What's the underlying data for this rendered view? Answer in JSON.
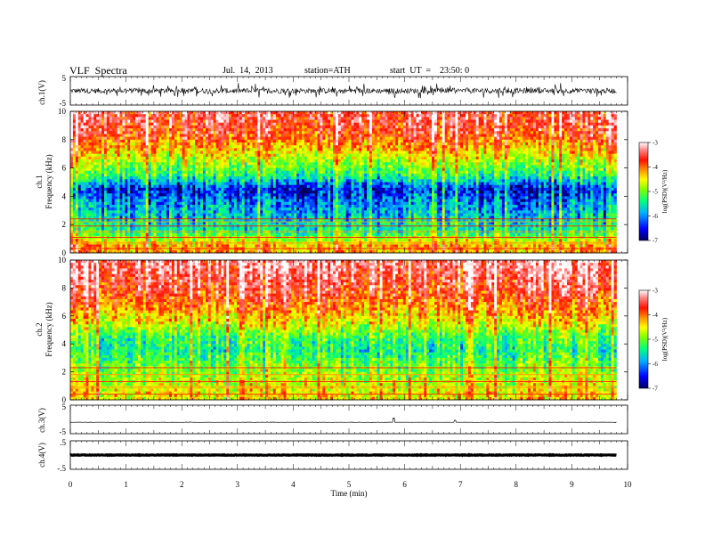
{
  "header": {
    "title": "VLF  Spectra",
    "date": "Jul.  14,  2013",
    "station": "station=ATH",
    "start": "start  UT  =    23:50: 0"
  },
  "colors": {
    "spectrum": [
      "#000080",
      "#0000ff",
      "#00a0ff",
      "#00ffd0",
      "#00ff40",
      "#a0ff00",
      "#ffff00",
      "#ffa000",
      "#ff3000",
      "#ff0000",
      "#ffc0c0",
      "#ffffff"
    ]
  },
  "chart_data": [
    {
      "id": "ch1-wave",
      "type": "line",
      "ylabel": "ch.1(V)",
      "yticks": [
        "5",
        "-5"
      ],
      "ylim": [
        -5,
        5
      ],
      "xlim": [
        0,
        10
      ],
      "series": [
        {
          "values_desc": "dense noisy waveform centered near 0 V, amplitude about ±1.5 V, over 0–9.8 min"
        }
      ]
    },
    {
      "id": "ch1-spec",
      "type": "heatmap",
      "ylabel": "ch.1 Frequency (kHz)",
      "yticks": [
        "0",
        "2",
        "4",
        "6",
        "8",
        "10"
      ],
      "ylim": [
        0,
        10
      ],
      "xlim": [
        0,
        10
      ],
      "data_end_min": 9.8,
      "colorbar": {
        "label": "log(PSD)(V²/Hz)",
        "ticks": [
          "-3",
          "-4",
          "-5",
          "-6",
          "-7"
        ],
        "range": [
          -7,
          -3
        ]
      },
      "profile": [
        {
          "f_khz": 0.5,
          "log_psd": -4.3
        },
        {
          "f_khz": 1.5,
          "log_psd": -5.6
        },
        {
          "f_khz": 2.5,
          "log_psd": -5.9
        },
        {
          "f_khz": 3.5,
          "log_psd": -6.2
        },
        {
          "f_khz": 4.5,
          "log_psd": -6.6
        },
        {
          "f_khz": 5.5,
          "log_psd": -5.5
        },
        {
          "f_khz": 6.5,
          "log_psd": -4.9
        },
        {
          "f_khz": 7.5,
          "log_psd": -4.3
        },
        {
          "f_khz": 8.5,
          "log_psd": -3.8
        },
        {
          "f_khz": 9.5,
          "log_psd": -3.6
        }
      ],
      "tones_khz": [
        0.3,
        0.7,
        1.1,
        1.5,
        1.9,
        2.2,
        2.4
      ]
    },
    {
      "id": "ch2-spec",
      "type": "heatmap",
      "ylabel": "ch.2 Frequency (kHz)",
      "yticks": [
        "0",
        "2",
        "4",
        "6",
        "8",
        "10"
      ],
      "ylim": [
        0,
        10
      ],
      "xlim": [
        0,
        10
      ],
      "data_end_min": 9.8,
      "colorbar": {
        "label": "log(PSD)(V²/Hz)",
        "ticks": [
          "-3",
          "-4",
          "-5",
          "-6",
          "-7"
        ],
        "range": [
          -7,
          -3
        ]
      },
      "profile": [
        {
          "f_khz": 0.5,
          "log_psd": -4.6
        },
        {
          "f_khz": 1.5,
          "log_psd": -4.9
        },
        {
          "f_khz": 2.5,
          "log_psd": -5.2
        },
        {
          "f_khz": 3.5,
          "log_psd": -5.6
        },
        {
          "f_khz": 4.5,
          "log_psd": -5.4
        },
        {
          "f_khz": 5.5,
          "log_psd": -4.7
        },
        {
          "f_khz": 6.5,
          "log_psd": -4.2
        },
        {
          "f_khz": 7.5,
          "log_psd": -3.8
        },
        {
          "f_khz": 8.5,
          "log_psd": -3.6
        },
        {
          "f_khz": 9.5,
          "log_psd": -3.4
        }
      ],
      "tones_khz": [
        0.4,
        0.9,
        1.3,
        1.8,
        2.3
      ]
    },
    {
      "id": "ch3-wave",
      "type": "line",
      "ylabel": "ch.3(V)",
      "yticks": [
        "5",
        "-5"
      ],
      "ylim": [
        -5,
        5
      ],
      "xlim": [
        0,
        10
      ],
      "series": [
        {
          "values_desc": "flat trace near -1 V with small spikes near 5.8 and 6.9 min"
        }
      ]
    },
    {
      "id": "ch4-wave",
      "type": "line",
      "ylabel": "ch.4(V)",
      "yticks": [
        ".5",
        "-.5"
      ],
      "ylim": [
        -0.5,
        0.5
      ],
      "xlim": [
        0,
        10
      ],
      "series": [
        {
          "values_desc": "thick flat trace near 0 V across 0–9.8 min"
        }
      ]
    }
  ],
  "xaxis": {
    "label": "Time  (min)",
    "ticks": [
      "0",
      "1",
      "2",
      "3",
      "4",
      "5",
      "6",
      "7",
      "8",
      "9",
      "10"
    ],
    "range": [
      0,
      10
    ]
  }
}
